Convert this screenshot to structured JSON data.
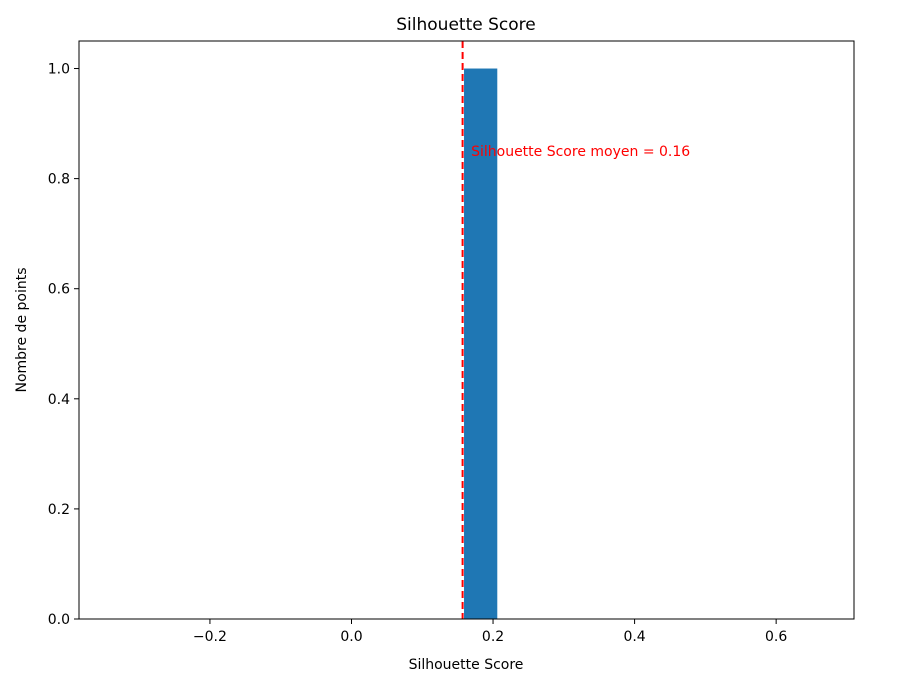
{
  "chart_data": {
    "type": "bar",
    "title": "Silhouette Score",
    "xlabel": "Silhouette Score",
    "ylabel": "Nombre de points",
    "xlim": [
      -0.385,
      0.71
    ],
    "ylim": [
      0,
      1.05
    ],
    "xticks": [
      -0.2,
      0.0,
      0.2,
      0.4,
      0.6
    ],
    "xtick_labels": [
      "−0.2",
      "0.0",
      "0.2",
      "0.4",
      "0.6"
    ],
    "yticks": [
      0.0,
      0.2,
      0.4,
      0.6,
      0.8,
      1.0
    ],
    "ytick_labels": [
      "0.0",
      "0.2",
      "0.4",
      "0.6",
      "0.8",
      "1.0"
    ],
    "bins": [
      {
        "x0": 0.159,
        "x1": 0.206,
        "value": 1.0
      }
    ],
    "mean_line": {
      "x": 0.157,
      "color": "#ff0000",
      "style": "dashed"
    },
    "annotation": {
      "text": "Silhouette Score moyen = 0.16",
      "x": 0.169,
      "y": 0.85,
      "color": "#ff0000"
    },
    "bar_color": "#1f77b4",
    "grid": false
  }
}
